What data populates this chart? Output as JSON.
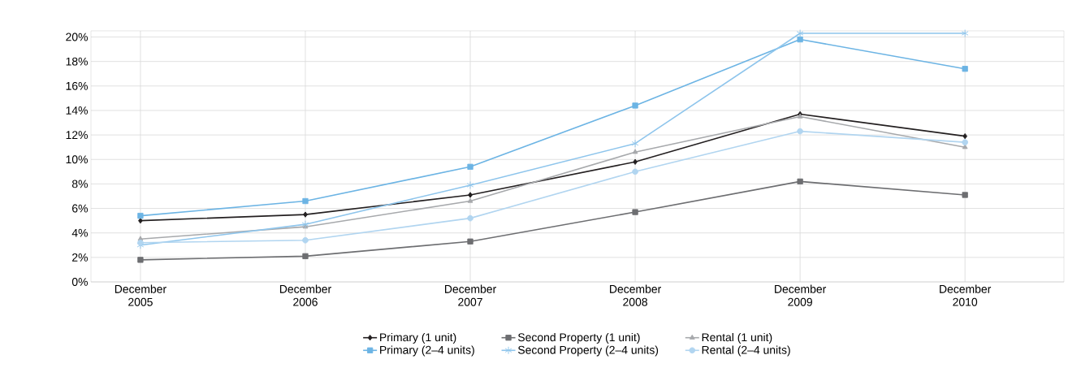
{
  "chart_data": {
    "type": "line",
    "categories": [
      "December 2005",
      "December 2006",
      "December 2007",
      "December 2008",
      "December 2009",
      "December 2010"
    ],
    "ylim": [
      0,
      20.5
    ],
    "yticks": [
      {
        "value": 0,
        "label": "0%"
      },
      {
        "value": 2,
        "label": "2%"
      },
      {
        "value": 4,
        "label": "4%"
      },
      {
        "value": 6,
        "label": "6%"
      },
      {
        "value": 8,
        "label": "8%"
      },
      {
        "value": 10,
        "label": "10%"
      },
      {
        "value": 12,
        "label": "12%"
      },
      {
        "value": 14,
        "label": "14%"
      },
      {
        "value": 16,
        "label": "16%"
      },
      {
        "value": 18,
        "label": "18%"
      },
      {
        "value": 20,
        "label": "20%"
      }
    ],
    "grid": true,
    "legend": "bottom",
    "series": [
      {
        "name": "Primary (1 unit)",
        "color": "#231f20",
        "marker": "diamond",
        "values": [
          5.0,
          5.5,
          7.1,
          9.8,
          13.7,
          11.9
        ]
      },
      {
        "name": "Second Property (1 unit)",
        "color": "#6d6e71",
        "marker": "square",
        "values": [
          1.8,
          2.1,
          3.3,
          5.7,
          8.2,
          7.1
        ]
      },
      {
        "name": "Rental (1 unit)",
        "color": "#a7a9ac",
        "marker": "triangle",
        "values": [
          3.5,
          4.5,
          6.6,
          10.6,
          13.5,
          11.0
        ]
      },
      {
        "name": "Primary (2–4 units)",
        "color": "#6cb4e4",
        "marker": "square",
        "values": [
          5.4,
          6.6,
          9.4,
          14.4,
          19.8,
          17.4
        ]
      },
      {
        "name": "Second Property (2–4 units)",
        "color": "#8ec5ec",
        "marker": "cross",
        "values": [
          3.0,
          4.7,
          7.9,
          11.3,
          20.3,
          20.3
        ]
      },
      {
        "name": "Rental (2–4 units)",
        "color": "#b1d5f0",
        "marker": "circle",
        "values": [
          3.2,
          3.4,
          5.2,
          9.0,
          12.3,
          11.4
        ]
      }
    ]
  }
}
